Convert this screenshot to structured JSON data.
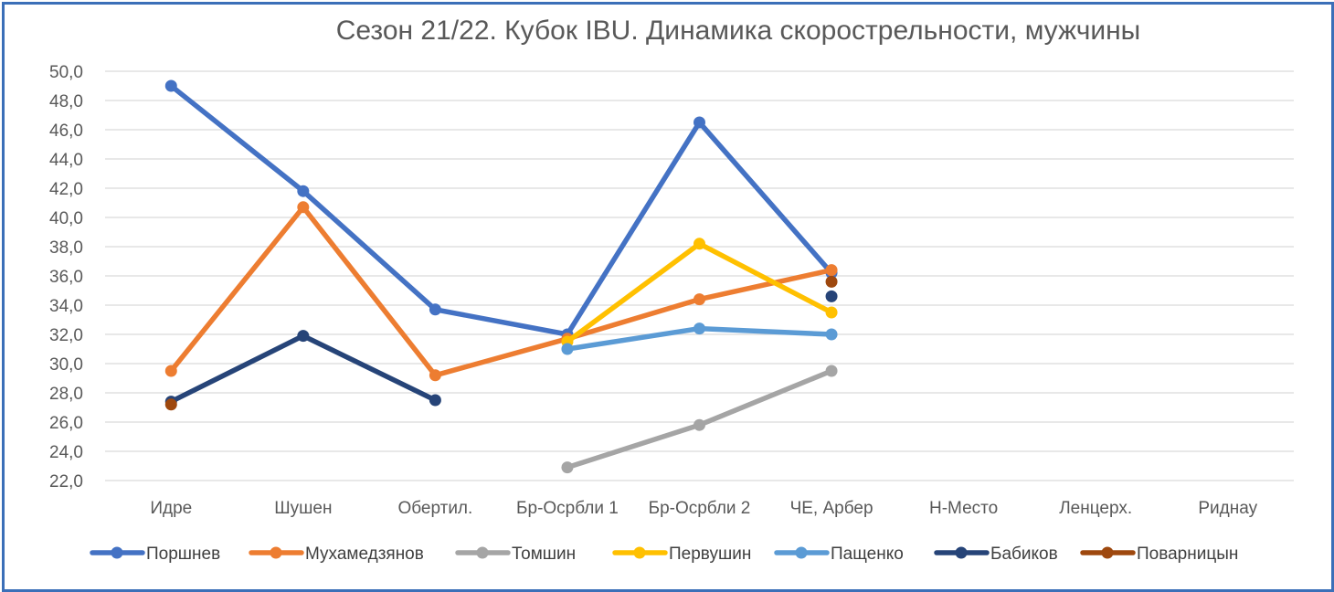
{
  "chart_data": {
    "type": "line",
    "title": "Сезон 21/22. Кубок IBU. Динамика скорострельности, мужчины",
    "xlabel": "",
    "ylabel": "",
    "categories": [
      "Идре",
      "Шушен",
      "Обертил.",
      "Бр-Осрбли 1",
      "Бр-Осрбли 2",
      "ЧЕ, Арбер",
      "Н-Место",
      "Ленцерх.",
      "Риднау"
    ],
    "ylim": [
      22.0,
      50.0
    ],
    "yticks": [
      "50,0",
      "48,0",
      "46,0",
      "44,0",
      "42,0",
      "40,0",
      "38,0",
      "36,0",
      "34,0",
      "32,0",
      "30,0",
      "28,0",
      "26,0",
      "24,0",
      "22,0"
    ],
    "grid": true,
    "legend_position": "bottom",
    "series": [
      {
        "name": "Поршнев",
        "color": "#4472c4",
        "values": [
          49.0,
          41.8,
          33.7,
          32.0,
          46.5,
          36.2,
          null,
          null,
          null
        ]
      },
      {
        "name": "Мухамедзянов",
        "color": "#ed7d31",
        "values": [
          29.5,
          40.7,
          29.2,
          31.7,
          34.4,
          36.4,
          null,
          null,
          null
        ]
      },
      {
        "name": "Томшин",
        "color": "#a5a5a5",
        "values": [
          null,
          null,
          null,
          22.9,
          25.8,
          29.5,
          null,
          null,
          null
        ]
      },
      {
        "name": "Первушин",
        "color": "#ffc000",
        "values": [
          null,
          null,
          null,
          31.5,
          38.2,
          33.5,
          null,
          null,
          null
        ]
      },
      {
        "name": "Пащенко",
        "color": "#5b9bd5",
        "values": [
          null,
          null,
          null,
          31.0,
          32.4,
          32.0,
          null,
          null,
          null
        ]
      },
      {
        "name": "Бабиков",
        "color": "#264478",
        "values": [
          27.4,
          31.9,
          27.5,
          null,
          null,
          34.6,
          null,
          null,
          null
        ]
      },
      {
        "name": "Поварницын",
        "color": "#9e480e",
        "values": [
          27.2,
          null,
          null,
          null,
          null,
          35.6,
          null,
          null,
          null
        ]
      }
    ]
  }
}
